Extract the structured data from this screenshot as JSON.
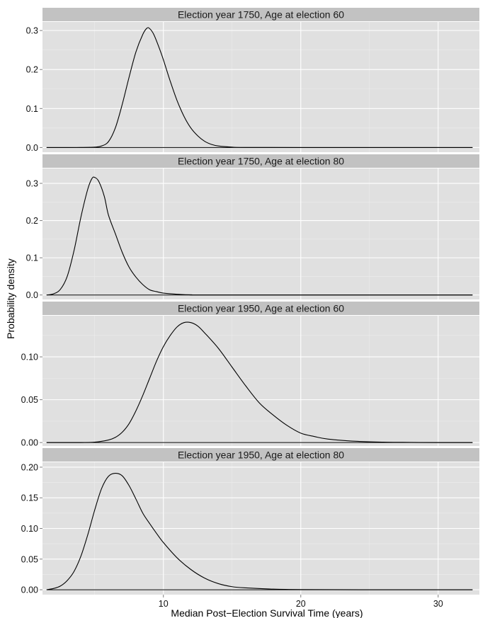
{
  "chart_data": {
    "type": "line",
    "xlabel": "Median Post−Election Survival Time (years)",
    "ylabel": "Probability density",
    "xlim": [
      1.2,
      33.0
    ],
    "x_ticks": [
      10,
      20,
      30
    ],
    "grid": true,
    "panels": [
      {
        "title": "Election year 1750, Age at election 60",
        "ylim": [
          -0.012,
          0.322
        ],
        "y_ticks": [
          0.0,
          0.1,
          0.2,
          0.3
        ],
        "y_tick_labels": [
          "0.0",
          "0.1",
          "0.2",
          "0.3"
        ],
        "x": [
          1.5,
          3,
          4,
          5,
          5.5,
          6,
          6.5,
          7,
          7.5,
          8,
          8.5,
          8.8,
          9,
          9.3,
          9.7,
          10,
          10.5,
          11,
          11.5,
          12,
          12.5,
          13,
          13.5,
          14,
          15,
          16,
          20,
          32.5
        ],
        "y": [
          0,
          0,
          0.0001,
          0.001,
          0.004,
          0.015,
          0.05,
          0.11,
          0.18,
          0.245,
          0.29,
          0.306,
          0.305,
          0.29,
          0.255,
          0.225,
          0.17,
          0.12,
          0.08,
          0.05,
          0.03,
          0.016,
          0.008,
          0.004,
          0.001,
          0.0002,
          0,
          0
        ]
      },
      {
        "title": "Election year 1750, Age at election 80",
        "ylim": [
          -0.012,
          0.34
        ],
        "y_ticks": [
          0.0,
          0.1,
          0.2,
          0.3
        ],
        "y_tick_labels": [
          "0.0",
          "0.1",
          "0.2",
          "0.3"
        ],
        "x": [
          1.5,
          2,
          2.5,
          3,
          3.5,
          4,
          4.5,
          4.8,
          5,
          5.3,
          5.7,
          6,
          6.5,
          7,
          7.5,
          8,
          8.5,
          9,
          9.5,
          10,
          11,
          12,
          14,
          32.5
        ],
        "y": [
          0,
          0.003,
          0.015,
          0.05,
          0.12,
          0.21,
          0.285,
          0.313,
          0.316,
          0.305,
          0.265,
          0.215,
          0.165,
          0.115,
          0.075,
          0.048,
          0.028,
          0.014,
          0.009,
          0.005,
          0.002,
          0.0005,
          0,
          0
        ]
      },
      {
        "title": "Election year 1950, Age at election 60",
        "ylim": [
          -0.004,
          0.148
        ],
        "y_ticks": [
          0.0,
          0.05,
          0.1
        ],
        "y_tick_labels": [
          "0.00",
          "0.05",
          "0.10"
        ],
        "x": [
          1.5,
          4,
          5,
          6,
          6.5,
          7,
          7.5,
          8,
          8.5,
          9,
          9.5,
          10,
          10.5,
          11,
          11.5,
          12,
          12.5,
          13,
          14,
          15,
          16,
          17,
          18,
          19,
          20,
          21,
          22,
          24,
          26,
          28,
          30,
          32.5
        ],
        "y": [
          0,
          0,
          0.0005,
          0.003,
          0.006,
          0.012,
          0.022,
          0.037,
          0.055,
          0.075,
          0.095,
          0.112,
          0.125,
          0.135,
          0.14,
          0.14,
          0.136,
          0.128,
          0.11,
          0.088,
          0.066,
          0.046,
          0.032,
          0.02,
          0.011,
          0.007,
          0.004,
          0.0015,
          0.0005,
          0.0002,
          0,
          0
        ]
      },
      {
        "title": "Election year 1950, Age at election 80",
        "ylim": [
          -0.008,
          0.208
        ],
        "y_ticks": [
          0.0,
          0.05,
          0.1,
          0.15,
          0.2
        ],
        "y_tick_labels": [
          "0.00",
          "0.05",
          "0.10",
          "0.15",
          "0.20"
        ],
        "x": [
          1.5,
          2,
          2.5,
          3,
          3.5,
          4,
          4.5,
          5,
          5.5,
          6,
          6.5,
          7,
          7.5,
          8,
          8.5,
          9,
          9.5,
          10,
          11,
          12,
          13,
          14,
          15,
          16,
          18,
          20,
          25,
          32.5
        ],
        "y": [
          0,
          0.002,
          0.006,
          0.015,
          0.03,
          0.055,
          0.09,
          0.13,
          0.165,
          0.185,
          0.19,
          0.186,
          0.17,
          0.148,
          0.125,
          0.108,
          0.092,
          0.077,
          0.052,
          0.033,
          0.019,
          0.01,
          0.005,
          0.003,
          0.001,
          0.0003,
          0,
          0
        ]
      }
    ]
  }
}
